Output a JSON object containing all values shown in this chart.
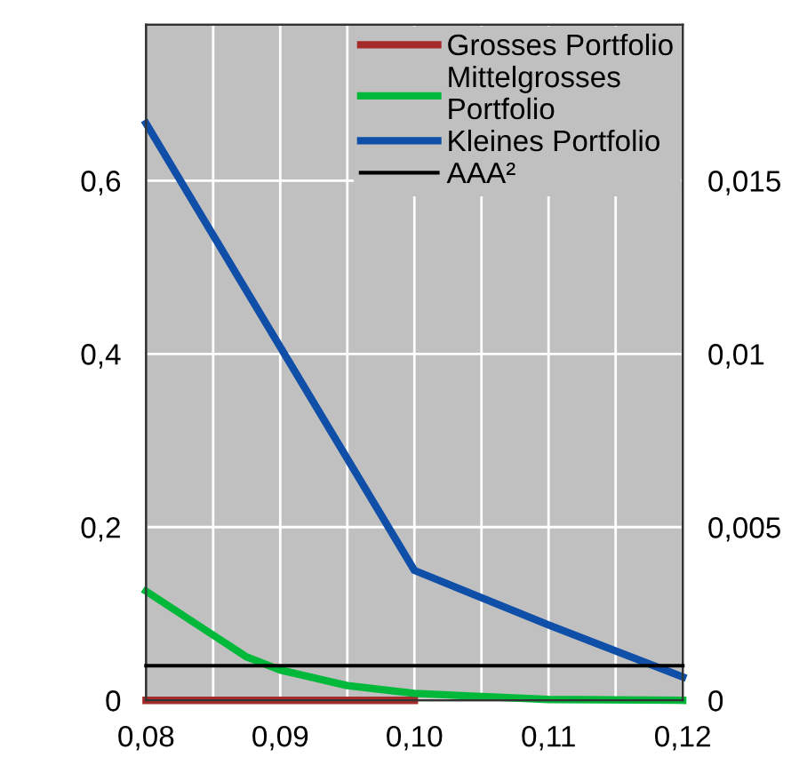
{
  "chart_data": {
    "type": "line",
    "xlim": [
      0.08,
      0.12
    ],
    "xticks": [
      {
        "value": 0.08,
        "label": "0,08"
      },
      {
        "value": 0.085,
        "label": null
      },
      {
        "value": 0.09,
        "label": "0,09"
      },
      {
        "value": 0.095,
        "label": null
      },
      {
        "value": 0.1,
        "label": "0,10"
      },
      {
        "value": 0.105,
        "label": null
      },
      {
        "value": 0.11,
        "label": "0,11"
      },
      {
        "value": 0.115,
        "label": null
      },
      {
        "value": 0.12,
        "label": "0,12"
      }
    ],
    "ylim": [
      0,
      0.78
    ],
    "yticks": [
      0,
      {
        "value": 0.2,
        "label": "0,2"
      },
      {
        "value": 0.4,
        "label": "0,4"
      },
      {
        "value": 0.6,
        "label": "0,6"
      }
    ],
    "y2lim": [
      0,
      0.0195
    ],
    "y2ticks": [
      0,
      {
        "value": 0.005,
        "label": "0,005"
      },
      {
        "value": 0.01,
        "label": "0,01"
      },
      {
        "value": 0.015,
        "label": "0,015"
      }
    ],
    "grid": true,
    "legend": "top right",
    "marker": "none",
    "line_style": "solid",
    "series": [
      {
        "name": "Grosses Portfolio",
        "color": "#a52a2a",
        "x": [
          0.08,
          0.09,
          0.1
        ],
        "values": [
          0,
          0,
          0
        ]
      },
      {
        "name": "Mittelgrosses\nPortfolio",
        "color": "#00b93a",
        "x": [
          0.08,
          0.0875,
          0.09,
          0.095,
          0.1,
          0.11,
          0.12
        ],
        "values": [
          0.126,
          0.05,
          0.035,
          0.017,
          0.008,
          0.001,
          0
        ]
      },
      {
        "name": "Kleines Portfolio",
        "color": "#0f4fa8",
        "x": [
          0.08,
          0.1,
          0.11,
          0.12
        ],
        "values": [
          0.666,
          0.15,
          0.087,
          0.027
        ]
      },
      {
        "name": "AAA²",
        "color": "#000000",
        "axis": "y2",
        "x": [
          0.08,
          0.12
        ],
        "values": [
          0.001,
          0.001
        ]
      }
    ]
  }
}
